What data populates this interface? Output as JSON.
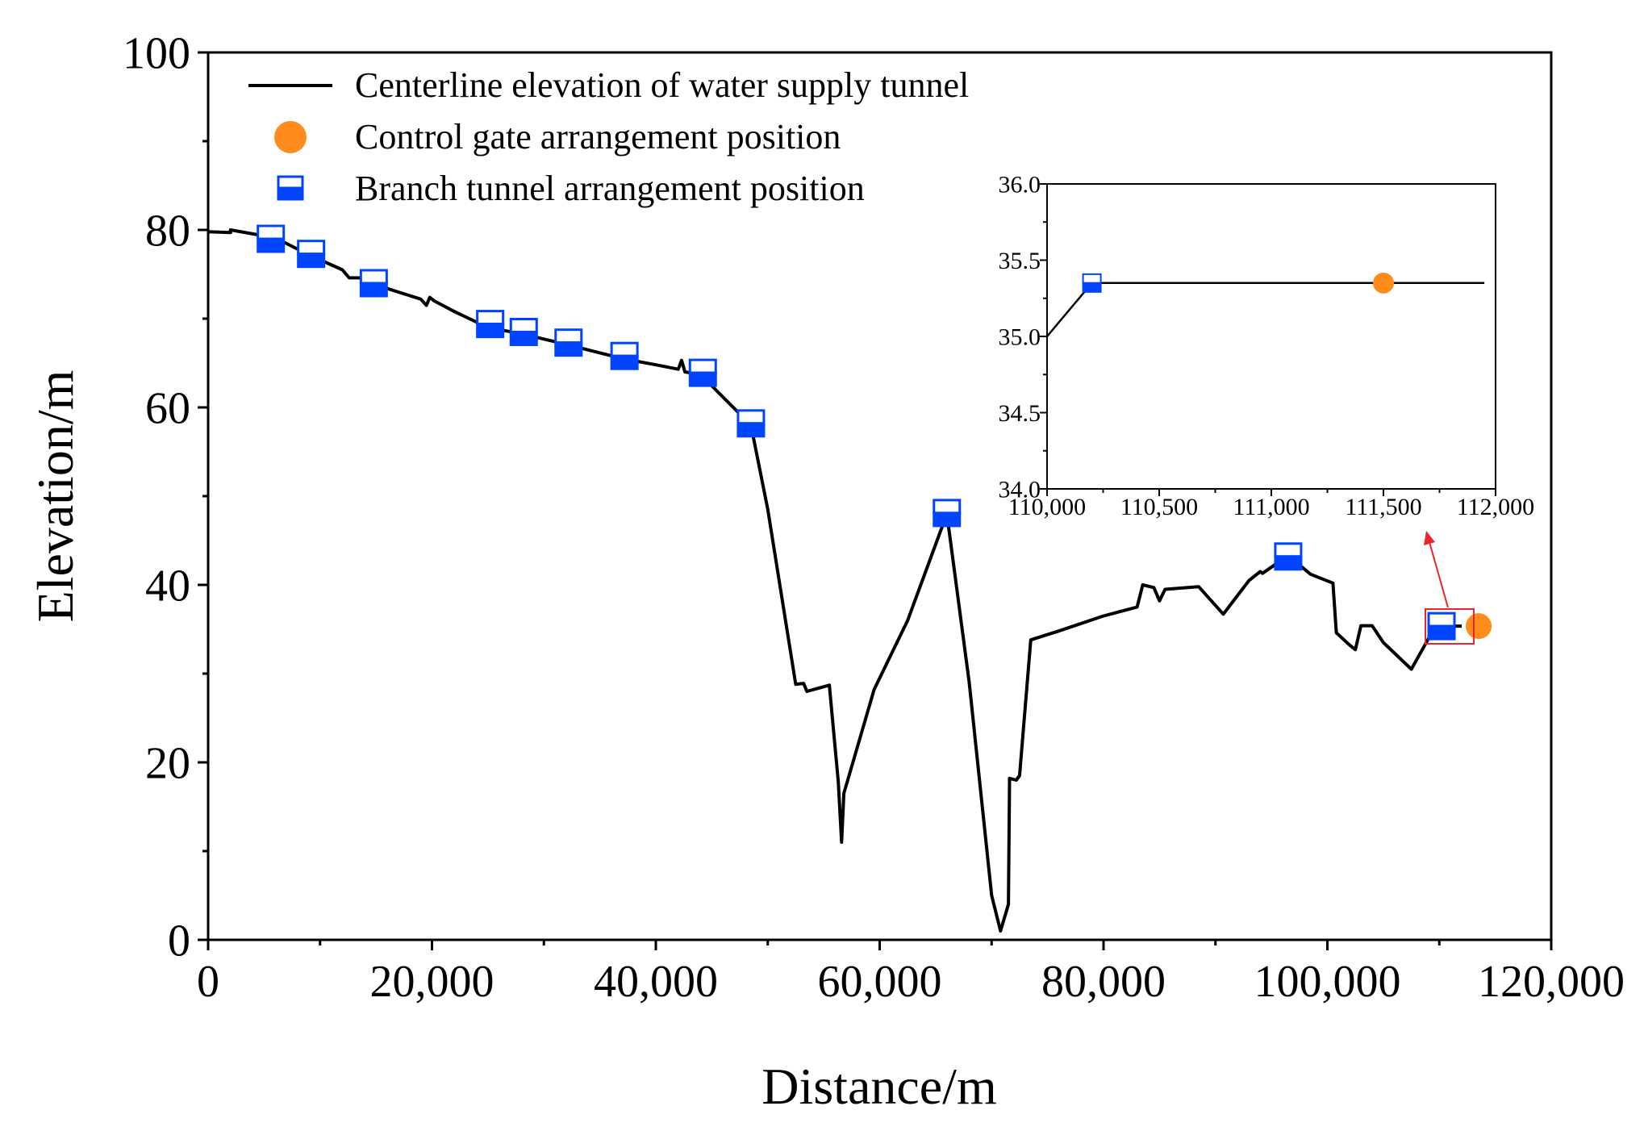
{
  "colors": {
    "line": "#000000",
    "gate": "#FF8C1A",
    "branch": "#0044FF",
    "highlight": "#E8262A"
  },
  "chart_data": [
    {
      "type": "line",
      "xlabel": "Distance/m",
      "ylabel": "Elevation/m",
      "xlim": [
        0,
        120000
      ],
      "ylim": [
        0,
        100
      ],
      "x_ticks": [
        0,
        20000,
        40000,
        60000,
        80000,
        100000,
        120000
      ],
      "x_tick_labels": [
        "0",
        "20,000",
        "40,000",
        "60,000",
        "80,000",
        "100,000",
        "120,000"
      ],
      "y_ticks": [
        0,
        20,
        40,
        60,
        80,
        100
      ],
      "y_tick_labels": [
        "0",
        "20",
        "40",
        "60",
        "80",
        "100"
      ],
      "legend_position": "top-left",
      "legend": [
        {
          "label": "Centerline elevation of water supply tunnel",
          "marker": "line"
        },
        {
          "label": "Control gate arrangement position",
          "marker": "circle"
        },
        {
          "label": "Branch tunnel arrangement position",
          "marker": "half-filled-square"
        }
      ],
      "series": [
        {
          "name": "Centerline elevation of water supply tunnel",
          "x": [
            0,
            2000,
            2000,
            6000,
            9000,
            12000,
            12600,
            13500,
            15000,
            19000,
            19500,
            19800,
            20200,
            22000,
            25000,
            28000,
            32000,
            37000,
            40000,
            42000,
            42300,
            42600,
            44000,
            48500,
            50000,
            52500,
            53200,
            53500,
            55500,
            56300,
            56600,
            56800,
            59500,
            62500,
            66000,
            68000,
            70000,
            70800,
            71500,
            71600,
            72200,
            72500,
            73500,
            76000,
            80000,
            83000,
            83500,
            84500,
            85000,
            85500,
            88500,
            90700,
            93000,
            94000,
            94200,
            96500,
            98500,
            100500,
            100800,
            102000,
            102500,
            103000,
            104000,
            105000,
            107500,
            109500,
            110200,
            111500,
            112000
          ],
          "values": [
            79.8,
            79.7,
            80.0,
            79.1,
            77.2,
            75.5,
            74.6,
            74.6,
            73.8,
            72.2,
            71.5,
            72.4,
            72.0,
            70.8,
            69.0,
            68.3,
            67.1,
            65.5,
            64.8,
            64.3,
            65.3,
            64.0,
            63.7,
            58.0,
            48.5,
            28.8,
            28.9,
            28.0,
            28.7,
            17.8,
            11.0,
            16.5,
            28.2,
            36.0,
            48.0,
            29.0,
            5.0,
            1.0,
            4.0,
            18.2,
            18.0,
            18.5,
            33.8,
            34.8,
            36.5,
            37.5,
            40.0,
            39.7,
            38.2,
            39.5,
            39.8,
            36.7,
            40.5,
            41.5,
            41.3,
            43.3,
            41.2,
            40.2,
            34.6,
            33.2,
            32.7,
            35.4,
            35.4,
            33.5,
            30.5,
            35.0,
            35.35,
            35.35,
            35.35
          ]
        },
        {
          "name": "Branch tunnel arrangement position",
          "x": [
            5600,
            9200,
            14800,
            25200,
            28200,
            32200,
            37200,
            44200,
            48500,
            66000,
            96500,
            110200
          ],
          "values": [
            79.0,
            77.3,
            74.0,
            69.4,
            68.5,
            67.3,
            65.8,
            63.9,
            58.2,
            48.1,
            43.2,
            35.35
          ]
        },
        {
          "name": "Control gate arrangement position",
          "x": [
            111500
          ],
          "values": [
            35.35
          ]
        }
      ]
    },
    {
      "type": "line",
      "inset": true,
      "xlim": [
        110000,
        112000
      ],
      "ylim": [
        34.0,
        36.0
      ],
      "x_ticks": [
        110000,
        110500,
        111000,
        111500,
        112000
      ],
      "x_tick_labels": [
        "110,000",
        "110,500",
        "111,000",
        "111,500",
        "112,000"
      ],
      "y_ticks": [
        34.0,
        34.5,
        35.0,
        35.5,
        36.0
      ],
      "y_tick_labels": [
        "34.0",
        "34.5",
        "35.0",
        "35.5",
        "36.0"
      ],
      "series": [
        {
          "name": "Centerline elevation of water supply tunnel",
          "x": [
            110000,
            110200,
            111500,
            111950
          ],
          "values": [
            35.0,
            35.35,
            35.35,
            35.35
          ]
        },
        {
          "name": "Branch tunnel arrangement position",
          "x": [
            110200
          ],
          "values": [
            35.35
          ]
        },
        {
          "name": "Control gate arrangement position",
          "x": [
            111500
          ],
          "values": [
            35.35
          ]
        }
      ]
    }
  ]
}
